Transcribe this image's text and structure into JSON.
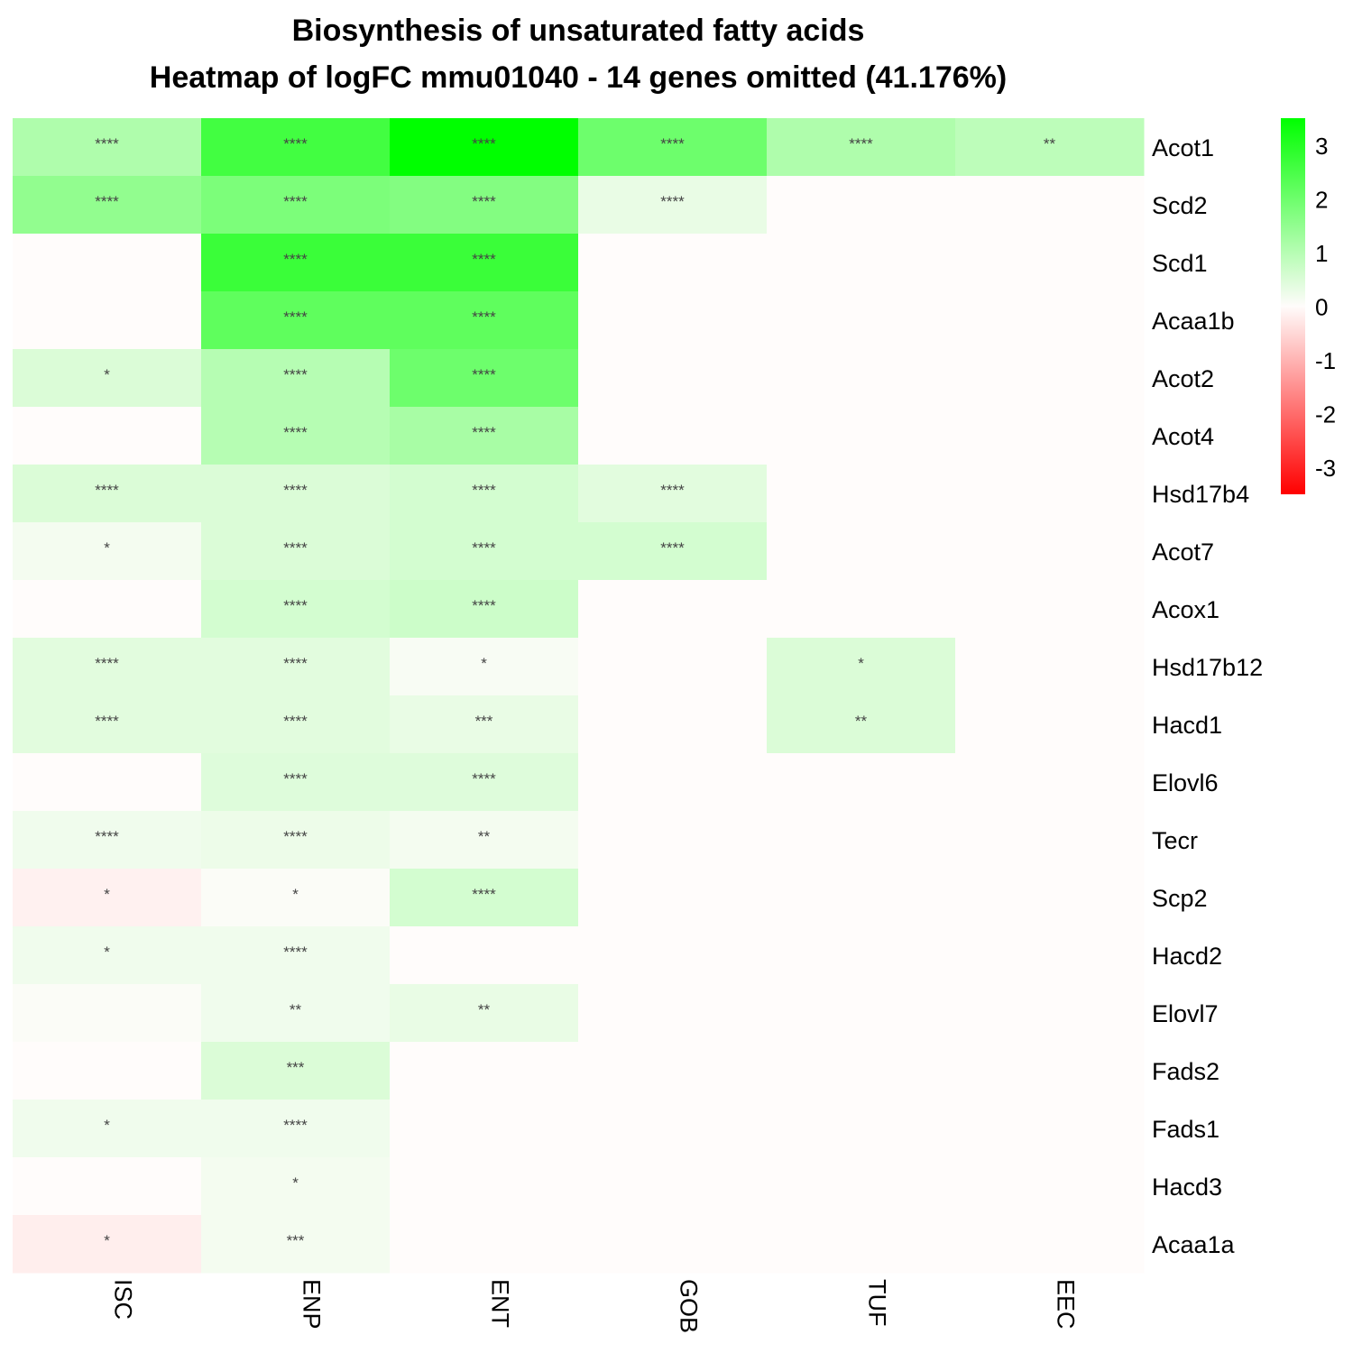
{
  "chart_data": {
    "type": "heatmap",
    "title": "Biosynthesis of unsaturated fatty acids",
    "subtitle": "Heatmap of logFC mmu01040 - 14 genes omitted (41.176%)",
    "columns": [
      "ISC",
      "ENP",
      "ENT",
      "GOB",
      "TUF",
      "EEC"
    ],
    "rows": [
      "Acot1",
      "Scd2",
      "Scd1",
      "Acaa1b",
      "Acot2",
      "Acot4",
      "Hsd17b4",
      "Acot7",
      "Acox1",
      "Hsd17b12",
      "Hacd1",
      "Elovl6",
      "Tecr",
      "Scp2",
      "Hacd2",
      "Elovl7",
      "Fads2",
      "Fads1",
      "Hacd3",
      "Acaa1a"
    ],
    "values": [
      [
        1.1,
        2.6,
        3.5,
        2.0,
        1.1,
        0.9
      ],
      [
        1.5,
        1.8,
        1.7,
        0.3,
        0,
        0
      ],
      [
        0,
        2.7,
        2.7,
        0,
        0,
        0
      ],
      [
        0,
        2.2,
        2.2,
        0,
        0,
        0
      ],
      [
        0.5,
        1.0,
        2.0,
        0,
        0,
        0
      ],
      [
        0,
        1.0,
        1.2,
        0,
        0,
        0
      ],
      [
        0.5,
        0.5,
        0.6,
        0.4,
        0,
        0
      ],
      [
        0.15,
        0.5,
        0.6,
        0.6,
        0,
        0
      ],
      [
        0,
        0.6,
        0.7,
        0,
        0,
        0
      ],
      [
        0.4,
        0.4,
        0.1,
        0,
        0.5,
        0
      ],
      [
        0.4,
        0.4,
        0.3,
        0,
        0.5,
        0
      ],
      [
        0,
        0.45,
        0.45,
        0,
        0,
        0
      ],
      [
        0.2,
        0.25,
        0.15,
        0,
        0,
        0
      ],
      [
        -0.15,
        0.05,
        0.6,
        0,
        0,
        0
      ],
      [
        0.2,
        0.2,
        0,
        0,
        0,
        0
      ],
      [
        0.05,
        0.2,
        0.3,
        0,
        0,
        0
      ],
      [
        0,
        0.5,
        0,
        0,
        0,
        0
      ],
      [
        0.2,
        0.2,
        0,
        0,
        0,
        0
      ],
      [
        0,
        0.15,
        0,
        0,
        0,
        0
      ],
      [
        -0.2,
        0.15,
        0,
        0,
        0,
        0
      ]
    ],
    "annotations": [
      [
        "****",
        "****",
        "****",
        "****",
        "****",
        "**"
      ],
      [
        "****",
        "****",
        "****",
        "****",
        "",
        ""
      ],
      [
        "",
        "****",
        "****",
        "",
        "",
        ""
      ],
      [
        "",
        "****",
        "****",
        "",
        "",
        ""
      ],
      [
        "*",
        "****",
        "****",
        "",
        "",
        ""
      ],
      [
        "",
        "****",
        "****",
        "",
        "",
        ""
      ],
      [
        "****",
        "****",
        "****",
        "****",
        "",
        ""
      ],
      [
        "*",
        "****",
        "****",
        "****",
        "",
        ""
      ],
      [
        "",
        "****",
        "****",
        "",
        "",
        ""
      ],
      [
        "****",
        "****",
        "*",
        "",
        "*",
        ""
      ],
      [
        "****",
        "****",
        "***",
        "",
        "**",
        ""
      ],
      [
        "",
        "****",
        "****",
        "",
        "",
        ""
      ],
      [
        "****",
        "****",
        "**",
        "",
        "",
        ""
      ],
      [
        "*",
        "*",
        "****",
        "",
        "",
        ""
      ],
      [
        "*",
        "****",
        "",
        "",
        "",
        ""
      ],
      [
        "",
        "**",
        "**",
        "",
        "",
        ""
      ],
      [
        "",
        "***",
        "",
        "",
        "",
        ""
      ],
      [
        "*",
        "****",
        "",
        "",
        "",
        ""
      ],
      [
        "",
        "*",
        "",
        "",
        "",
        ""
      ],
      [
        "*",
        "***",
        "",
        "",
        "",
        ""
      ]
    ],
    "color_scale": {
      "min": -3.5,
      "max": 3.5,
      "low_color": "#ff0000",
      "mid_color": "#fffcfb",
      "high_color": "#00ff00",
      "ticks": [
        3,
        2,
        1,
        0,
        -1,
        -2,
        -3
      ],
      "tick_labels": [
        "3",
        "2",
        "1",
        "0",
        "-1",
        "-2",
        "-3"
      ]
    },
    "legend_position": "right"
  }
}
